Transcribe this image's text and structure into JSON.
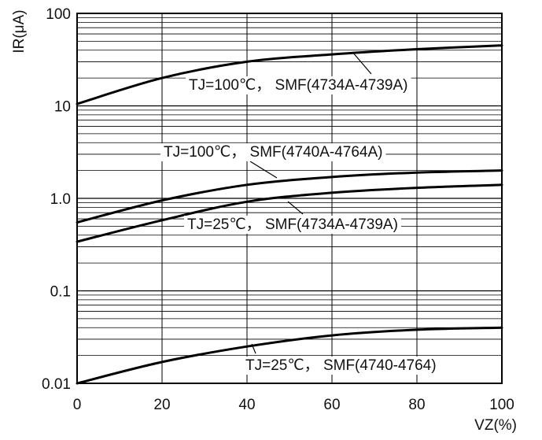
{
  "chart_data": {
    "type": "line",
    "xlabel": "VZ(%)",
    "ylabel": "IR(μA)",
    "xlim": [
      0,
      100
    ],
    "ylim": [
      0.01,
      100
    ],
    "yscale": "log",
    "grid": true,
    "x_ticks": [
      "0",
      "20",
      "40",
      "60",
      "80",
      "100"
    ],
    "y_ticks": [
      "0.01",
      "0.1",
      "1.0",
      "10",
      "100"
    ],
    "x": [
      0,
      20,
      40,
      60,
      80,
      100
    ],
    "series": [
      {
        "name": "TJ=100℃， SMF(4734A-4739A)",
        "values": [
          10.5,
          20,
          30,
          36,
          41,
          45
        ]
      },
      {
        "name": "TJ=100℃， SMF(4740A-4764A)",
        "values": [
          0.55,
          0.95,
          1.4,
          1.7,
          1.9,
          2.0
        ]
      },
      {
        "name": "TJ=25℃， SMF(4734A-4739A)",
        "values": [
          0.34,
          0.58,
          0.92,
          1.15,
          1.3,
          1.4
        ]
      },
      {
        "name": "TJ=25℃， SMF(4740-4764)",
        "values": [
          0.01,
          0.017,
          0.025,
          0.033,
          0.038,
          0.04
        ]
      }
    ]
  }
}
